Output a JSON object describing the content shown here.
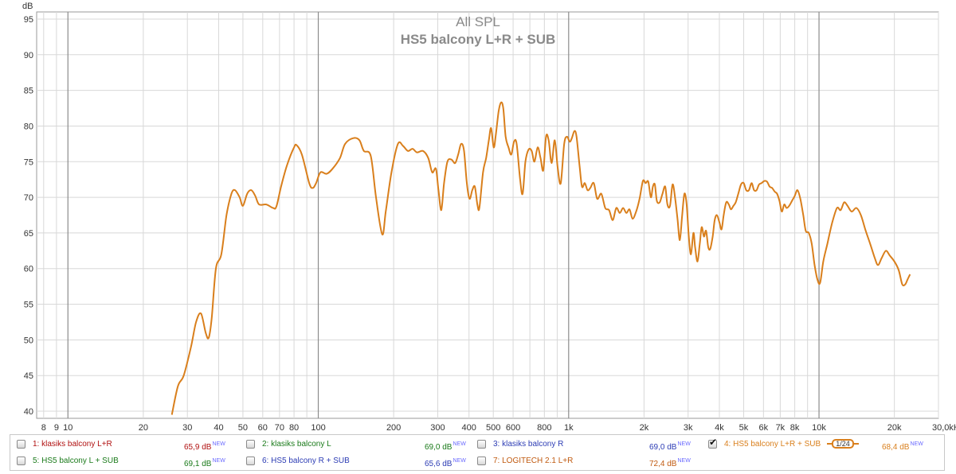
{
  "chart_data": {
    "type": "line",
    "title": "All SPL",
    "subtitle": "HS5 balcony L+R + SUB",
    "ylabel": "dB",
    "x_scale": "log",
    "xlim": [
      7.5,
      30000
    ],
    "ylim": [
      39,
      96
    ],
    "grid": true,
    "x_ticks": [
      {
        "v": 8,
        "label": "8"
      },
      {
        "v": 9,
        "label": "9"
      },
      {
        "v": 10,
        "label": "10"
      },
      {
        "v": 20,
        "label": "20"
      },
      {
        "v": 30,
        "label": "30"
      },
      {
        "v": 40,
        "label": "40"
      },
      {
        "v": 50,
        "label": "50"
      },
      {
        "v": 60,
        "label": "60"
      },
      {
        "v": 70,
        "label": "70"
      },
      {
        "v": 80,
        "label": "80"
      },
      {
        "v": 100,
        "label": "100"
      },
      {
        "v": 200,
        "label": "200"
      },
      {
        "v": 300,
        "label": "300"
      },
      {
        "v": 400,
        "label": "400"
      },
      {
        "v": 500,
        "label": "500"
      },
      {
        "v": 600,
        "label": "600"
      },
      {
        "v": 800,
        "label": "800"
      },
      {
        "v": 1000,
        "label": "1k"
      },
      {
        "v": 2000,
        "label": "2k"
      },
      {
        "v": 3000,
        "label": "3k"
      },
      {
        "v": 4000,
        "label": "4k"
      },
      {
        "v": 5000,
        "label": "5k"
      },
      {
        "v": 6000,
        "label": "6k"
      },
      {
        "v": 7000,
        "label": "7k"
      },
      {
        "v": 8000,
        "label": "8k"
      },
      {
        "v": 10000,
        "label": "10k"
      },
      {
        "v": 20000,
        "label": "20k"
      },
      {
        "v": 30000,
        "label": "30,0kHz"
      }
    ],
    "y_ticks": [
      40,
      45,
      50,
      55,
      60,
      65,
      70,
      75,
      80,
      85,
      90,
      95
    ],
    "series": [
      {
        "name": "HS5 balcony L+R + SUB",
        "color": "#d97f1c",
        "points": [
          [
            26,
            39.5
          ],
          [
            27.5,
            43.5
          ],
          [
            29,
            45
          ],
          [
            31,
            49
          ],
          [
            32.5,
            52.5
          ],
          [
            34,
            53.7
          ],
          [
            35.5,
            51
          ],
          [
            36.5,
            50.3
          ],
          [
            37.5,
            53
          ],
          [
            39,
            60
          ],
          [
            41,
            62
          ],
          [
            43,
            67.5
          ],
          [
            45,
            70.5
          ],
          [
            46.5,
            71.0
          ],
          [
            48.5,
            70.0
          ],
          [
            50,
            68.8
          ],
          [
            52,
            70.5
          ],
          [
            54,
            71.0
          ],
          [
            56,
            70.2
          ],
          [
            58,
            69.0
          ],
          [
            62,
            69.0
          ],
          [
            66,
            68.5
          ],
          [
            68,
            68.7
          ],
          [
            71,
            71.5
          ],
          [
            75,
            74.5
          ],
          [
            80,
            77.0
          ],
          [
            82,
            77.3
          ],
          [
            86,
            76.0
          ],
          [
            92,
            72.0
          ],
          [
            95,
            71.3
          ],
          [
            98,
            72.0
          ],
          [
            102,
            73.5
          ],
          [
            108,
            73.3
          ],
          [
            114,
            74.0
          ],
          [
            122,
            75.5
          ],
          [
            128,
            77.5
          ],
          [
            138,
            78.3
          ],
          [
            146,
            78.0
          ],
          [
            152,
            76.5
          ],
          [
            162,
            75.8
          ],
          [
            170,
            70
          ],
          [
            180,
            64.8
          ],
          [
            186,
            68
          ],
          [
            196,
            73.5
          ],
          [
            208,
            77.5
          ],
          [
            218,
            77.2
          ],
          [
            228,
            76.5
          ],
          [
            238,
            76.8
          ],
          [
            248,
            76.3
          ],
          [
            262,
            76.5
          ],
          [
            275,
            75.5
          ],
          [
            285,
            73.5
          ],
          [
            295,
            74.0
          ],
          [
            302,
            71.0
          ],
          [
            310,
            68.2
          ],
          [
            318,
            72.0
          ],
          [
            328,
            75.0
          ],
          [
            340,
            75.3
          ],
          [
            352,
            74.8
          ],
          [
            362,
            76.0
          ],
          [
            372,
            77.5
          ],
          [
            382,
            76.5
          ],
          [
            392,
            72.0
          ],
          [
            402,
            69.8
          ],
          [
            412,
            71.0
          ],
          [
            422,
            71.5
          ],
          [
            432,
            69.0
          ],
          [
            440,
            68.5
          ],
          [
            455,
            73.5
          ],
          [
            468,
            75.5
          ],
          [
            480,
            78.0
          ],
          [
            490,
            79.7
          ],
          [
            502,
            77.0
          ],
          [
            512,
            78.8
          ],
          [
            525,
            82.0
          ],
          [
            537,
            83.3
          ],
          [
            548,
            82.5
          ],
          [
            560,
            78.5
          ],
          [
            575,
            77.0
          ],
          [
            590,
            76.0
          ],
          [
            605,
            77.8
          ],
          [
            620,
            77.5
          ],
          [
            640,
            72.5
          ],
          [
            655,
            70.5
          ],
          [
            672,
            75.0
          ],
          [
            692,
            76.7
          ],
          [
            712,
            76.5
          ],
          [
            730,
            75.0
          ],
          [
            752,
            77.0
          ],
          [
            772,
            75.5
          ],
          [
            792,
            73.8
          ],
          [
            812,
            78.5
          ],
          [
            832,
            78.0
          ],
          [
            855,
            74.8
          ],
          [
            880,
            78.0
          ],
          [
            905,
            74.0
          ],
          [
            930,
            72.0
          ],
          [
            960,
            77.5
          ],
          [
            985,
            78.5
          ],
          [
            1010,
            77.8
          ],
          [
            1030,
            78.3
          ],
          [
            1055,
            79.3
          ],
          [
            1075,
            78.5
          ],
          [
            1105,
            74.5
          ],
          [
            1130,
            71.5
          ],
          [
            1160,
            72.0
          ],
          [
            1190,
            71.0
          ],
          [
            1220,
            71.3
          ],
          [
            1260,
            72.0
          ],
          [
            1300,
            69.8
          ],
          [
            1350,
            70.5
          ],
          [
            1400,
            68.5
          ],
          [
            1450,
            68.2
          ],
          [
            1500,
            66.8
          ],
          [
            1550,
            68.5
          ],
          [
            1600,
            67.8
          ],
          [
            1650,
            68.5
          ],
          [
            1700,
            67.8
          ],
          [
            1750,
            68.3
          ],
          [
            1800,
            67.0
          ],
          [
            1860,
            68.0
          ],
          [
            1920,
            69.8
          ],
          [
            1980,
            72.3
          ],
          [
            2030,
            72.0
          ],
          [
            2080,
            72.2
          ],
          [
            2130,
            70.0
          ],
          [
            2170,
            71.5
          ],
          [
            2210,
            71.8
          ],
          [
            2250,
            69.5
          ],
          [
            2310,
            69.3
          ],
          [
            2370,
            70.5
          ],
          [
            2430,
            71.5
          ],
          [
            2480,
            69.0
          ],
          [
            2540,
            68.8
          ],
          [
            2600,
            71.8
          ],
          [
            2660,
            70.0
          ],
          [
            2720,
            67.0
          ],
          [
            2780,
            64.0
          ],
          [
            2840,
            67.5
          ],
          [
            2900,
            70.5
          ],
          [
            2960,
            69.0
          ],
          [
            3020,
            64.5
          ],
          [
            3080,
            62.0
          ],
          [
            3150,
            65.0
          ],
          [
            3200,
            63.0
          ],
          [
            3270,
            61.0
          ],
          [
            3340,
            63.5
          ],
          [
            3400,
            65.8
          ],
          [
            3470,
            64.5
          ],
          [
            3540,
            65.3
          ],
          [
            3610,
            63.0
          ],
          [
            3680,
            62.8
          ],
          [
            3760,
            64.5
          ],
          [
            3830,
            66.8
          ],
          [
            3910,
            67.5
          ],
          [
            4000,
            66.5
          ],
          [
            4080,
            65.5
          ],
          [
            4160,
            67.5
          ],
          [
            4260,
            69.3
          ],
          [
            4360,
            69.0
          ],
          [
            4450,
            68.3
          ],
          [
            4550,
            68.8
          ],
          [
            4650,
            69.3
          ],
          [
            4760,
            70.5
          ],
          [
            4880,
            71.8
          ],
          [
            5000,
            72.0
          ],
          [
            5120,
            71.0
          ],
          [
            5250,
            71.0
          ],
          [
            5380,
            72.0
          ],
          [
            5500,
            71.0
          ],
          [
            5630,
            71.0
          ],
          [
            5760,
            71.8
          ],
          [
            5900,
            72.0
          ],
          [
            6050,
            72.3
          ],
          [
            6200,
            72.2
          ],
          [
            6350,
            71.5
          ],
          [
            6500,
            71.3
          ],
          [
            6650,
            70.8
          ],
          [
            6800,
            70.5
          ],
          [
            6950,
            69.5
          ],
          [
            7100,
            68.0
          ],
          [
            7260,
            69.0
          ],
          [
            7420,
            68.5
          ],
          [
            7600,
            68.8
          ],
          [
            7800,
            69.5
          ],
          [
            8000,
            70.2
          ],
          [
            8200,
            71.0
          ],
          [
            8420,
            69.8
          ],
          [
            8650,
            67.5
          ],
          [
            8850,
            65.3
          ],
          [
            9100,
            65.0
          ],
          [
            9350,
            63.5
          ],
          [
            9600,
            60.5
          ],
          [
            9850,
            58.5
          ],
          [
            10100,
            58.0
          ],
          [
            10400,
            61.0
          ],
          [
            10800,
            63.5
          ],
          [
            11300,
            66.5
          ],
          [
            11800,
            68.5
          ],
          [
            12200,
            68.2
          ],
          [
            12600,
            69.3
          ],
          [
            13000,
            68.8
          ],
          [
            13500,
            68.0
          ],
          [
            14100,
            68.5
          ],
          [
            14700,
            67.5
          ],
          [
            15300,
            65.5
          ],
          [
            16000,
            63.5
          ],
          [
            16700,
            61.5
          ],
          [
            17200,
            60.5
          ],
          [
            17800,
            61.5
          ],
          [
            18500,
            62.5
          ],
          [
            19200,
            61.8
          ],
          [
            20000,
            61.0
          ],
          [
            20800,
            59.8
          ],
          [
            21500,
            57.8
          ],
          [
            22100,
            57.8
          ],
          [
            22600,
            58.5
          ],
          [
            23100,
            59.2
          ]
        ]
      }
    ]
  },
  "legend": {
    "items": [
      {
        "checked": false,
        "label": "1: klasiks balcony L+R",
        "value": "65,9 dB",
        "badge": "NEW",
        "color": "#b01010",
        "row": 0,
        "col": 0
      },
      {
        "checked": false,
        "label": "2: klasiks balcony L",
        "value": "69,0 dB",
        "badge": "NEW",
        "color": "#1a7a1a",
        "row": 0,
        "col": 1
      },
      {
        "checked": false,
        "label": "3: klasiks balcony R",
        "value": "69,0 dB",
        "badge": "NEW",
        "color": "#2c3cb4",
        "row": 0,
        "col": 2
      },
      {
        "checked": true,
        "label": "4: HS5 balcony L+R + SUB",
        "value": "68,4 dB",
        "badge": "NEW",
        "color": "#d97f1c",
        "row": 0,
        "col": 3,
        "smoothing": "1/24"
      },
      {
        "checked": false,
        "label": "5: HS5 balcony  L + SUB",
        "value": "69,1 dB",
        "badge": "NEW",
        "color": "#1a7a1a",
        "row": 1,
        "col": 0
      },
      {
        "checked": false,
        "label": "6: HS5 balcony R + SUB",
        "value": "65,6 dB",
        "badge": "NEW",
        "color": "#2c3cb4",
        "row": 1,
        "col": 1
      },
      {
        "checked": false,
        "label": "7: LOGITECH 2.1 L+R",
        "value": "72,4 dB",
        "badge": "NEW",
        "color": "#c05a10",
        "row": 1,
        "col": 2
      }
    ]
  }
}
